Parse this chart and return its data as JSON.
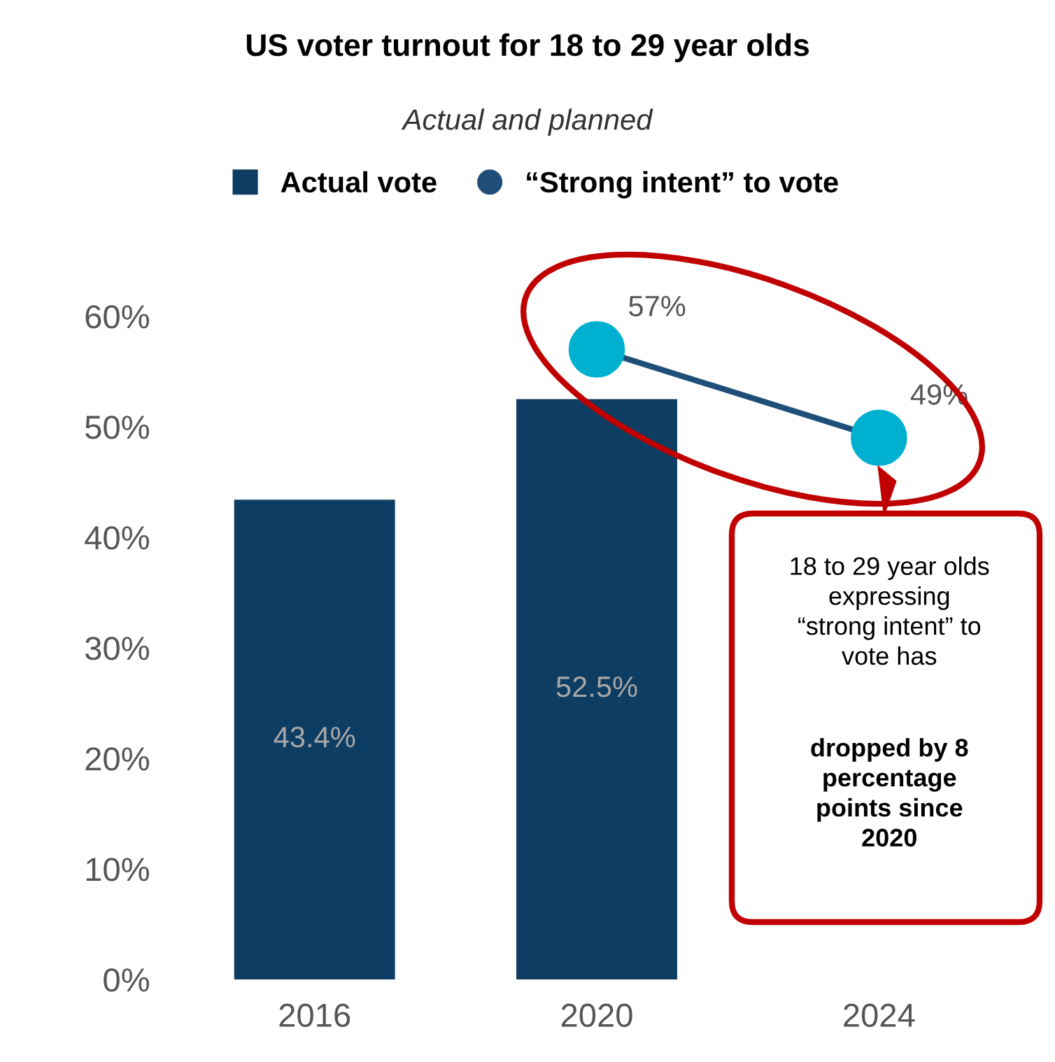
{
  "chart_data": {
    "type": "bar",
    "title": "US voter turnout for 18 to 29 year olds",
    "subtitle": "Actual and planned",
    "categories": [
      "2016",
      "2020",
      "2024"
    ],
    "series": [
      {
        "name": "Actual vote",
        "color": "#0e3d63",
        "values": [
          43.4,
          52.5,
          null
        ],
        "value_labels": [
          "43.4%",
          "52.5%",
          null
        ]
      },
      {
        "name": "“Strong intent” to vote",
        "type": "line",
        "color": "#1f4e79",
        "colors": [
          null,
          "#00b0d0",
          "#00b0d0"
        ],
        "values": [
          null,
          57,
          49
        ],
        "value_labels": [
          null,
          "57%",
          "49%"
        ]
      }
    ],
    "ylim": [
      0,
      60
    ],
    "yticks": [
      {
        "value": 0,
        "label": "0%"
      },
      {
        "value": 10,
        "label": "10%"
      },
      {
        "value": 20,
        "label": "20%"
      },
      {
        "value": 30,
        "label": "30%"
      },
      {
        "value": 40,
        "label": "40%"
      },
      {
        "value": 50,
        "label": "50%"
      },
      {
        "value": 60,
        "label": "60%"
      }
    ],
    "annotations": [
      "18 to 29 year olds\nexpressing\n“strong intent” to\nvote has",
      "dropped by 8\npercentage\npoints since\n2020"
    ],
    "legend": "top",
    "marker": "circle",
    "grid": false
  }
}
